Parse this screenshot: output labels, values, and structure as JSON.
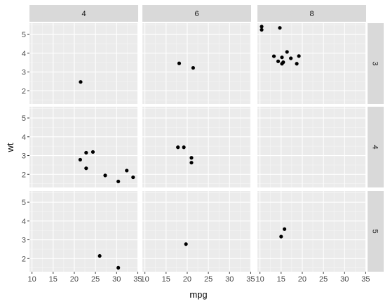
{
  "chart_data": {
    "type": "scatter",
    "facet_type": "grid",
    "xlabel": "mpg",
    "ylabel": "wt",
    "xlim": [
      9.4,
      35.1
    ],
    "ylim": [
      1.3,
      5.6
    ],
    "x_ticks": [
      10,
      15,
      20,
      25,
      30,
      35
    ],
    "x_tick_labels": [
      "10",
      "15",
      "20",
      "25",
      "30",
      "35"
    ],
    "y_ticks": [
      2,
      3,
      4,
      5
    ],
    "y_tick_labels": [
      "2",
      "3",
      "4",
      "5"
    ],
    "col_facets": [
      "4",
      "6",
      "8"
    ],
    "row_facets": [
      "3",
      "4",
      "5"
    ],
    "grid": true,
    "colors": {
      "panel_bg": "#ebebeb",
      "strip_bg": "#d9d9d9",
      "grid_major": "#ffffff",
      "grid_minor": "#f5f5f5",
      "point": "#000000",
      "tick": "#333333"
    },
    "panels": [
      {
        "row": "3",
        "col": "4",
        "points": [
          [
            21.5,
            2.47
          ]
        ]
      },
      {
        "row": "3",
        "col": "6",
        "points": [
          [
            18.1,
            3.46
          ],
          [
            21.4,
            3.22
          ]
        ]
      },
      {
        "row": "3",
        "col": "8",
        "points": [
          [
            10.4,
            5.42
          ],
          [
            10.4,
            5.25
          ],
          [
            14.7,
            5.35
          ],
          [
            13.3,
            3.84
          ],
          [
            14.3,
            3.57
          ],
          [
            15.2,
            3.78
          ],
          [
            15.2,
            3.44
          ],
          [
            15.5,
            3.52
          ],
          [
            16.4,
            4.07
          ],
          [
            17.3,
            3.73
          ],
          [
            18.7,
            3.44
          ],
          [
            19.2,
            3.85
          ]
        ]
      },
      {
        "row": "4",
        "col": "4",
        "points": [
          [
            21.4,
            2.78
          ],
          [
            22.8,
            3.15
          ],
          [
            22.8,
            2.32
          ],
          [
            24.4,
            3.19
          ],
          [
            27.3,
            1.94
          ],
          [
            30.4,
            1.62
          ],
          [
            32.4,
            2.2
          ],
          [
            33.9,
            1.84
          ]
        ]
      },
      {
        "row": "4",
        "col": "6",
        "points": [
          [
            17.8,
            3.44
          ],
          [
            19.2,
            3.44
          ],
          [
            21.0,
            2.88
          ],
          [
            21.0,
            2.62
          ]
        ]
      },
      {
        "row": "4",
        "col": "8",
        "points": []
      },
      {
        "row": "5",
        "col": "4",
        "points": [
          [
            26.0,
            2.14
          ],
          [
            30.4,
            1.51
          ]
        ]
      },
      {
        "row": "5",
        "col": "6",
        "points": [
          [
            19.7,
            2.77
          ]
        ]
      },
      {
        "row": "5",
        "col": "8",
        "points": [
          [
            15.8,
            3.57
          ],
          [
            15.0,
            3.17
          ]
        ]
      }
    ]
  }
}
